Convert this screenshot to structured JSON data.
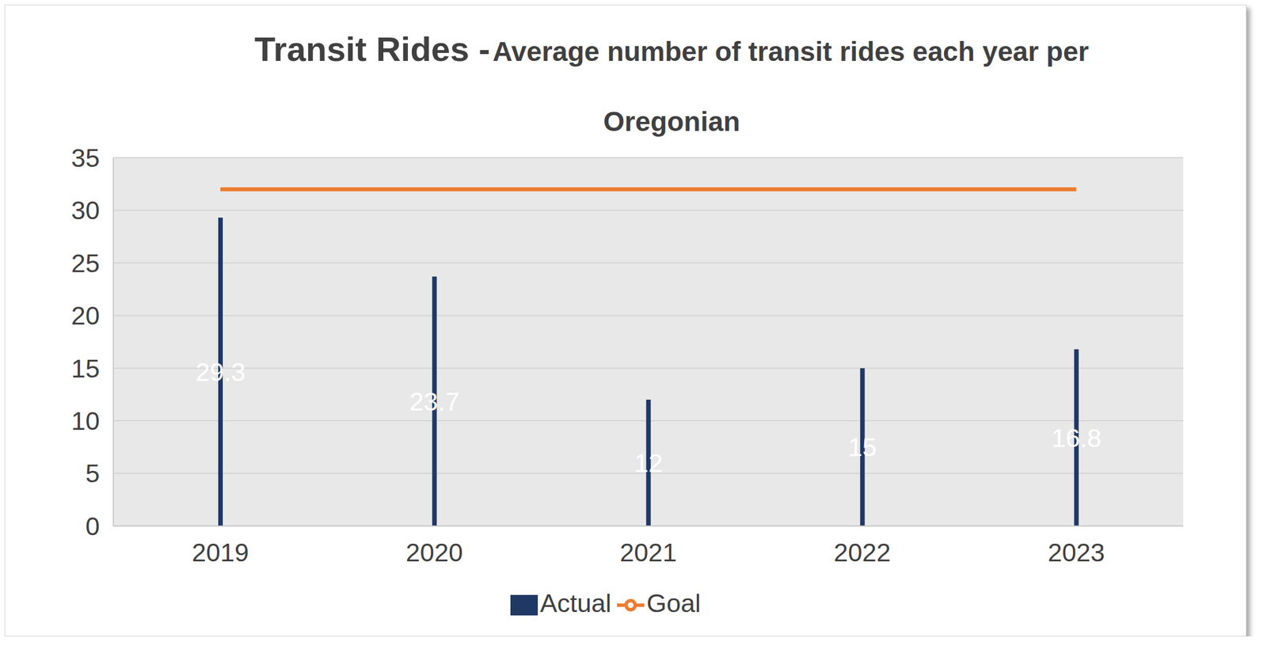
{
  "chart_data": {
    "type": "bar",
    "title": "Transit Rides -",
    "subtitle": "Average number of transit rides each year per Oregonian",
    "categories": [
      "2019",
      "2020",
      "2021",
      "2022",
      "2023"
    ],
    "series": [
      {
        "name": "Actual",
        "type": "bar",
        "color": "#203864",
        "data_labels": true,
        "values": [
          29.3,
          23.7,
          12,
          15,
          16.8
        ]
      },
      {
        "name": "Goal",
        "type": "line",
        "color": "#ED7D31",
        "values": [
          32,
          32,
          32,
          32,
          32
        ]
      }
    ],
    "ylim": [
      0,
      35
    ],
    "yticks": [
      0,
      5,
      10,
      15,
      20,
      25,
      30,
      35
    ],
    "grid": true,
    "legend": "bottom"
  }
}
